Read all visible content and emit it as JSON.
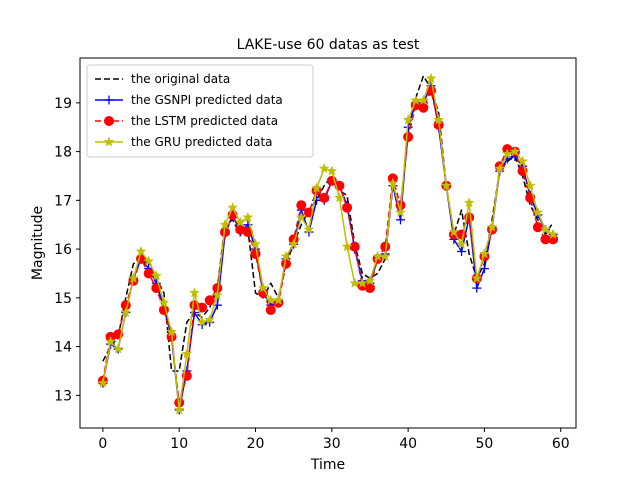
{
  "chart_data": {
    "type": "line",
    "title": "LAKE-use 60 datas as test",
    "xlabel": "Time",
    "ylabel": "Magnitude",
    "xlim": [
      -3,
      62
    ],
    "ylim": [
      12.33,
      19.92
    ],
    "xticks": [
      0,
      10,
      20,
      30,
      40,
      50,
      60
    ],
    "yticks": [
      13,
      14,
      15,
      16,
      17,
      18,
      19
    ],
    "grid": false,
    "legend_position": "top-left",
    "x": [
      0,
      1,
      2,
      3,
      4,
      5,
      6,
      7,
      8,
      9,
      10,
      11,
      12,
      13,
      14,
      15,
      16,
      17,
      18,
      19,
      20,
      21,
      22,
      23,
      24,
      25,
      26,
      27,
      28,
      29,
      30,
      31,
      32,
      33,
      34,
      35,
      36,
      37,
      38,
      39,
      40,
      41,
      42,
      43,
      44,
      45,
      46,
      47,
      48,
      49,
      50,
      51,
      52,
      53,
      54,
      55,
      56,
      57,
      58,
      59
    ],
    "series": [
      {
        "name": "the original data",
        "color": "#000000",
        "style": "dashed",
        "marker": "none",
        "values": [
          13.7,
          14.0,
          14.2,
          15.0,
          15.7,
          15.8,
          15.7,
          15.4,
          15.1,
          13.5,
          13.5,
          14.5,
          14.7,
          14.6,
          14.8,
          15.2,
          16.5,
          16.6,
          16.3,
          16.4,
          15.1,
          15.0,
          15.3,
          15.0,
          15.7,
          16.1,
          16.5,
          16.8,
          17.0,
          17.3,
          17.5,
          17.2,
          17.1,
          16.1,
          15.5,
          15.4,
          15.5,
          15.8,
          17.3,
          16.8,
          18.4,
          19.1,
          19.55,
          19.3,
          18.8,
          17.3,
          16.3,
          16.8,
          15.9,
          15.4,
          15.7,
          16.6,
          17.6,
          17.8,
          17.9,
          17.5,
          16.9,
          16.6,
          16.3,
          16.55
        ]
      },
      {
        "name": "the GSNPI predicted data",
        "color": "#0000ff",
        "style": "solid",
        "marker": "plus",
        "values": [
          13.25,
          14.05,
          13.95,
          14.7,
          15.4,
          15.8,
          15.6,
          15.3,
          14.8,
          14.2,
          12.7,
          13.5,
          14.7,
          14.45,
          14.5,
          14.85,
          16.3,
          16.7,
          16.35,
          16.5,
          16.0,
          15.1,
          14.85,
          14.95,
          15.8,
          16.1,
          16.8,
          16.35,
          17.0,
          17.0,
          17.4,
          17.3,
          16.9,
          16.0,
          15.35,
          15.3,
          15.8,
          15.9,
          17.3,
          16.6,
          18.5,
          19.0,
          19.0,
          19.35,
          18.5,
          17.3,
          16.2,
          15.95,
          16.65,
          15.2,
          15.6,
          16.45,
          17.6,
          17.85,
          17.9,
          17.7,
          17.1,
          16.7,
          16.4,
          16.3
        ]
      },
      {
        "name": "the LSTM predicted data",
        "color": "#ff0000",
        "style": "dashed",
        "marker": "circle",
        "values": [
          13.3,
          14.2,
          14.25,
          14.85,
          15.35,
          15.8,
          15.5,
          15.2,
          14.75,
          14.2,
          12.85,
          13.4,
          14.85,
          14.8,
          14.95,
          15.2,
          16.35,
          16.7,
          16.4,
          16.35,
          15.9,
          15.1,
          14.75,
          14.9,
          15.7,
          16.2,
          16.9,
          16.75,
          17.2,
          17.05,
          17.4,
          17.3,
          16.85,
          16.05,
          15.25,
          15.2,
          15.8,
          16.05,
          17.45,
          16.9,
          18.3,
          18.95,
          18.9,
          19.25,
          18.55,
          17.3,
          16.3,
          16.3,
          16.65,
          15.4,
          15.85,
          16.4,
          17.7,
          18.05,
          18.0,
          17.6,
          17.05,
          16.45,
          16.2,
          16.2
        ]
      },
      {
        "name": "the GRU predicted data",
        "color": "#bfbf00",
        "style": "solid",
        "marker": "star",
        "values": [
          13.25,
          14.1,
          13.95,
          14.7,
          15.4,
          15.95,
          15.75,
          15.45,
          14.9,
          14.3,
          12.7,
          13.85,
          15.1,
          14.5,
          14.55,
          15.05,
          16.5,
          16.85,
          16.55,
          16.65,
          16.1,
          15.2,
          14.95,
          14.95,
          15.85,
          16.1,
          16.65,
          16.4,
          17.25,
          17.65,
          17.6,
          17.05,
          16.05,
          15.3,
          15.3,
          15.35,
          15.85,
          15.85,
          17.35,
          16.75,
          18.65,
          19.05,
          19.05,
          19.5,
          18.65,
          17.3,
          16.35,
          16.1,
          16.95,
          15.4,
          15.9,
          16.45,
          17.65,
          17.95,
          18.0,
          17.8,
          17.3,
          16.75,
          16.4,
          16.3
        ]
      }
    ]
  }
}
